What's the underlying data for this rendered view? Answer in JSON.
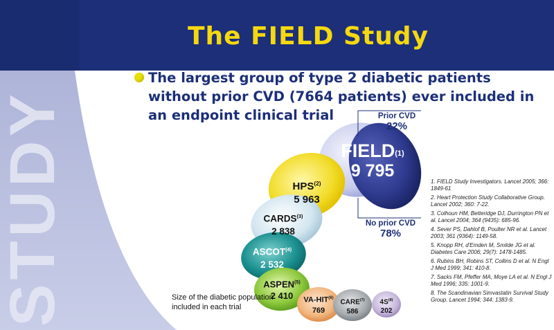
{
  "title": {
    "part1": "The ",
    "highlight": "FIELD",
    "part2": " Study"
  },
  "sidebar_watermark": "STUDY",
  "bullet": "The largest group of type 2 diabetic patients without prior CVD (7664 patients) ever included in an endpoint clinical trial",
  "field": {
    "name": "FIELD",
    "ref": "(1)",
    "value": "9 795"
  },
  "prior_cvd": {
    "label": "Prior CVD",
    "pct": "22%"
  },
  "no_prior_cvd": {
    "label": "No prior CVD",
    "pct": "78%"
  },
  "trials": [
    {
      "name": "HPS",
      "ref": "(2)",
      "value": "5 963"
    },
    {
      "name": "CARDS",
      "ref": "(3)",
      "value": "2 838"
    },
    {
      "name": "ASCOT",
      "ref": "(4)",
      "value": "2 532"
    },
    {
      "name": "ASPEN",
      "ref": "(5)",
      "value": "2 410"
    },
    {
      "name": "VA-HIT",
      "ref": "(6)",
      "value": "769"
    },
    {
      "name": "CARE",
      "ref": "(7)",
      "value": "586"
    },
    {
      "name": "4S",
      "ref": "(8)",
      "value": "202"
    }
  ],
  "caption": "Size of the diabetic population included in each trial",
  "references": [
    "1. FIELD Study Investigators. Lancet 2005; 366: 1849-61",
    "2. Heart Protection Study Collaborative Group. Lancet 2002; 360: 7-22.",
    "3. Colhoun HM, Betteridge DJ, Durrington PN et al. Lancet 2004; 364 (9435): 685-96.",
    "4. Sever PS, Dahlof B, Poulter NR et al. Lancet 2003; 361 (9364): 1149-58.",
    "5. Knopp RH, d'Emden M, Smilde JG et al. Diabetes Care 2006; 29(7): 1478-1485.",
    "6. Rubins BH, Robins ST, Collins D et al. N Engl J Med 1999; 341: 410-8.",
    "7. Sacks FM, Pfeffer MA, Moye LA et al. N Engl J Med 1996; 335: 1001-9.",
    "8. The Scandinavian Simvastatin Survival Study Group. Lancet 1994; 344: 1383-9."
  ],
  "colors": {
    "header_bg": "#1c2f78",
    "title": "#f5d80f",
    "bullet_text": "#1c2f78",
    "hps": "#f2dc2a",
    "cards": "#cfe3ee",
    "ascot": "#1a8f8f",
    "aspen": "#8cc83c",
    "vahit": "#f2b67f",
    "care": "#9fa4a7",
    "4s": "#c7b8dc",
    "field_back": "#cdd0ee",
    "field_front": "#2e3a8e"
  }
}
